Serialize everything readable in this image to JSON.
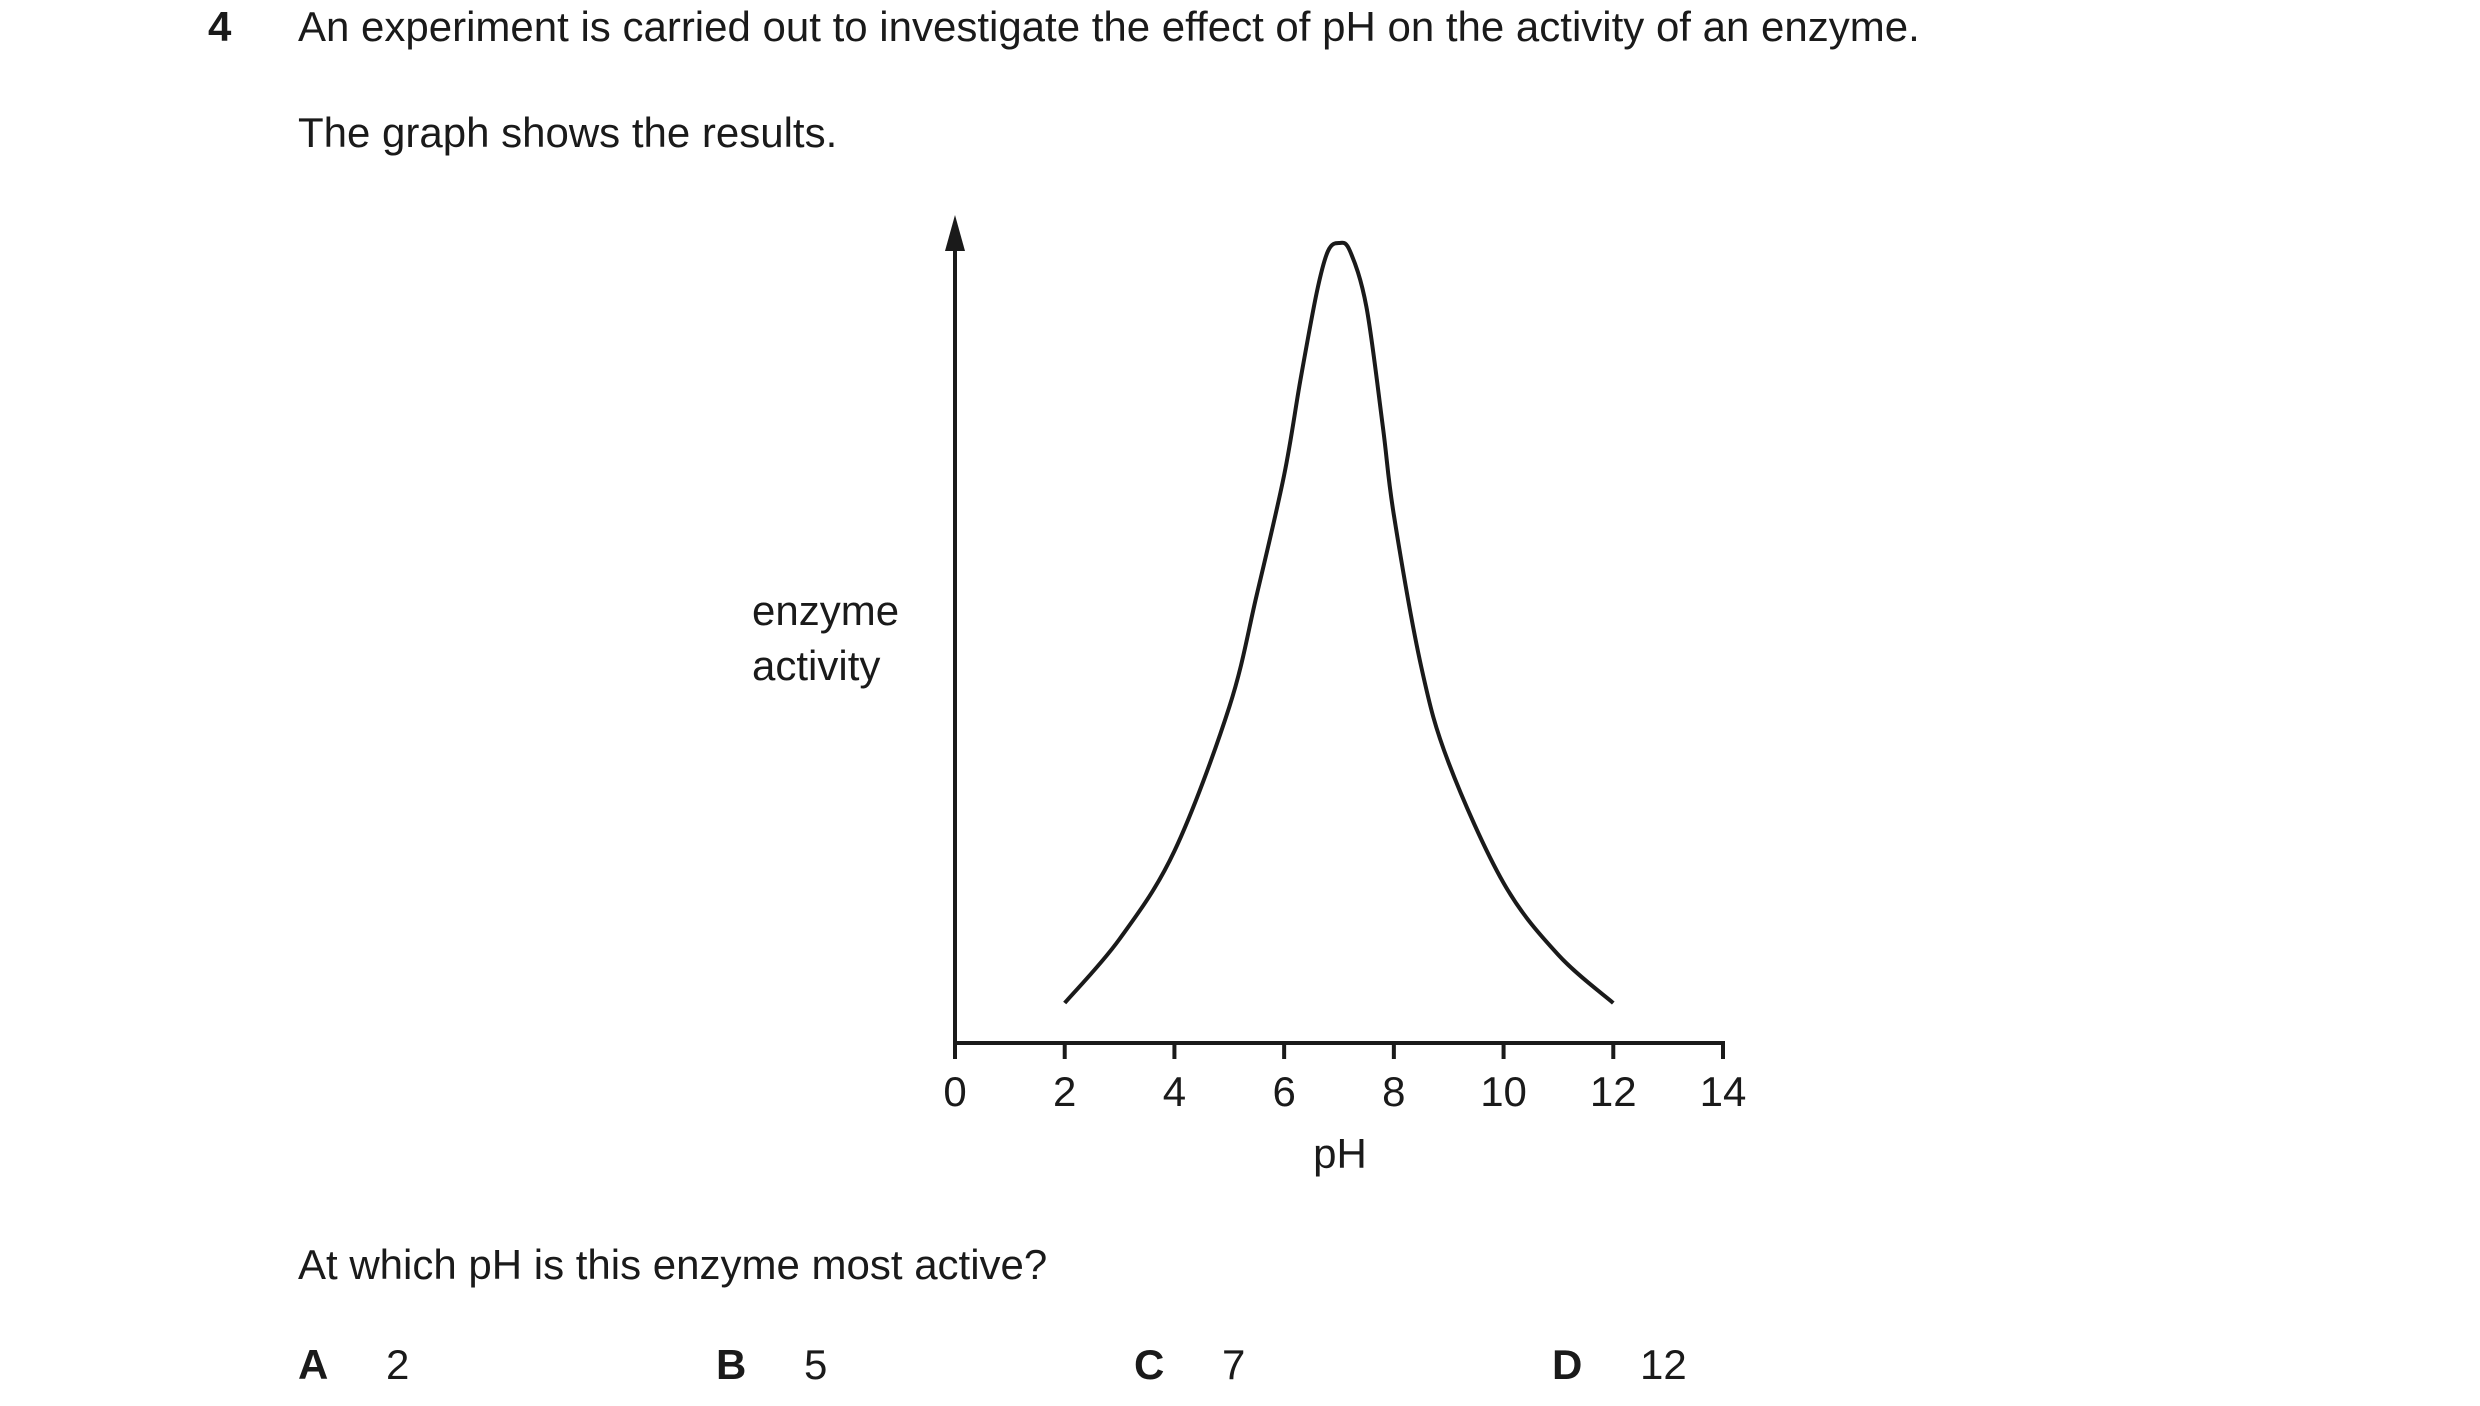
{
  "question": {
    "number": "4",
    "stem": "An experiment is carried out to investigate the effect of pH on the activity of an enzyme.",
    "graph_intro": "The graph shows the results.",
    "prompt": "At which pH is this enzyme most active?"
  },
  "options": [
    {
      "letter": "A",
      "value": "2"
    },
    {
      "letter": "B",
      "value": "5"
    },
    {
      "letter": "C",
      "value": "7"
    },
    {
      "letter": "D",
      "value": "12"
    }
  ],
  "chart_data": {
    "type": "line",
    "title": "",
    "xlabel": "pH",
    "ylabel": [
      "enzyme",
      "activity"
    ],
    "xlim": [
      0,
      14
    ],
    "xticks": [
      "0",
      "2",
      "4",
      "6",
      "8",
      "10",
      "12",
      "14"
    ],
    "y_axis_values_shown": false,
    "grid": false,
    "series": [
      {
        "x": [
          2,
          3,
          4,
          5,
          5.5,
          6,
          6.3,
          6.6,
          6.8,
          7,
          7.2,
          7.5,
          7.8,
          8,
          8.5,
          9,
          10,
          11,
          12
        ],
        "y": [
          0.05,
          0.13,
          0.24,
          0.42,
          0.56,
          0.71,
          0.83,
          0.94,
          0.99,
          1.0,
          0.99,
          0.92,
          0.77,
          0.66,
          0.47,
          0.35,
          0.2,
          0.11,
          0.05
        ]
      }
    ],
    "colors": {
      "line": "#1a1a1a",
      "axes": "#1a1a1a"
    }
  }
}
